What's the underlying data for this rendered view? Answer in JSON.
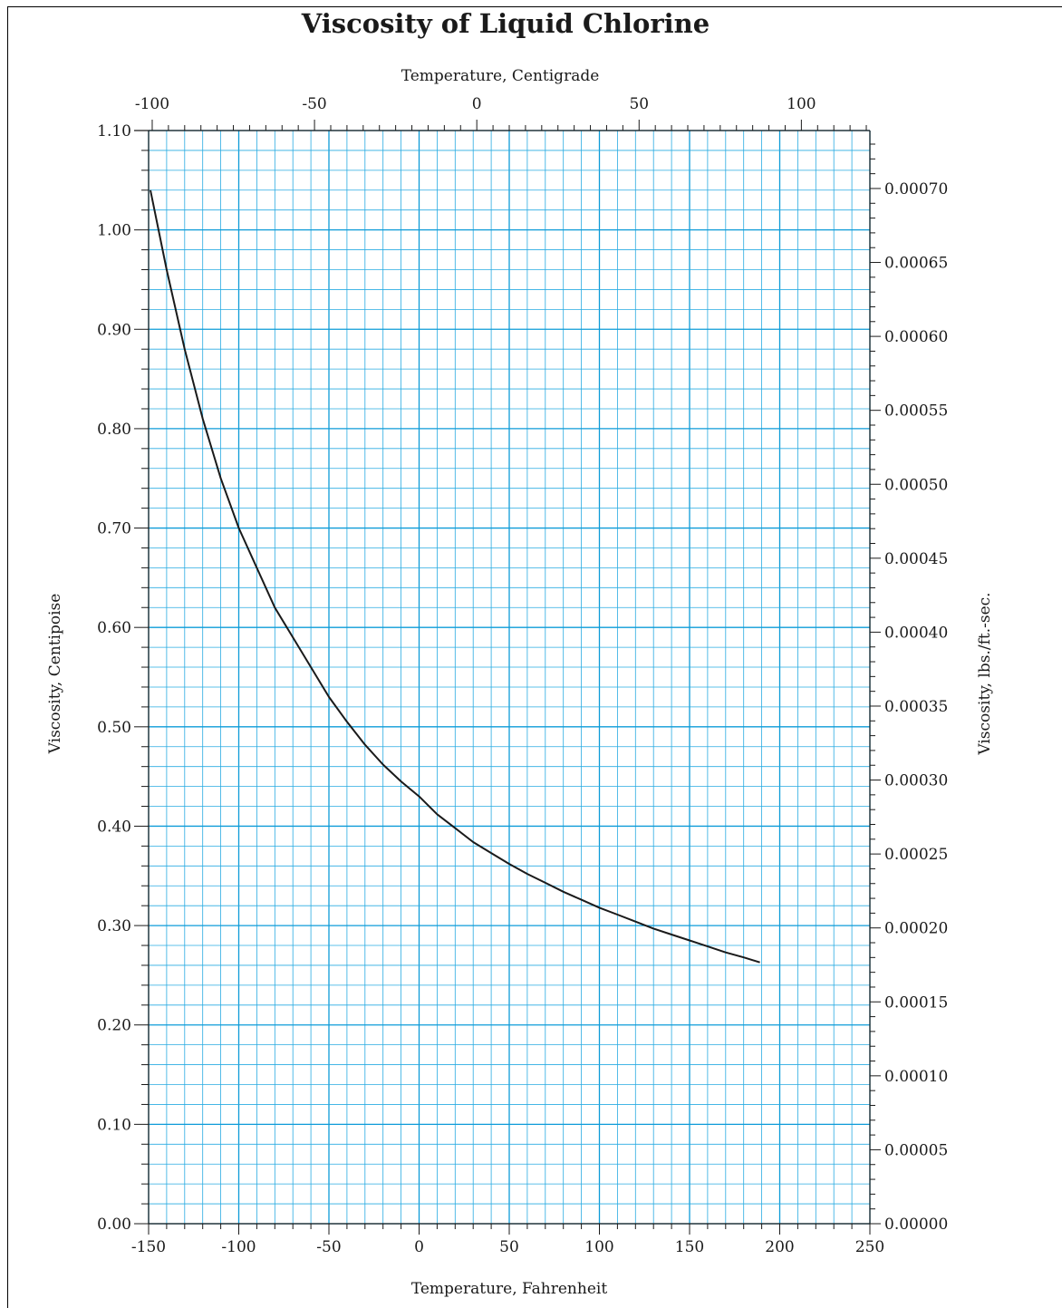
{
  "chart_data": {
    "type": "line",
    "title": "Viscosity of Liquid Chlorine",
    "x_bottom": {
      "label": "Temperature, Fahrenheit",
      "range": [
        -150,
        250
      ],
      "ticks": [
        "-150",
        "-100",
        "-50",
        "0",
        "50",
        "100",
        "150",
        "200",
        "250"
      ]
    },
    "x_top": {
      "label": "Temperature, Centigrade",
      "ticks": [
        "-100",
        "-50",
        "0",
        "50",
        "100"
      ],
      "tick_values": [
        -100,
        -50,
        0,
        50,
        100
      ]
    },
    "y_left": {
      "label": "Viscosity, Centipoise",
      "range": [
        0,
        1.1
      ],
      "ticks": [
        "0.00",
        "0.10",
        "0.20",
        "0.30",
        "0.40",
        "0.50",
        "0.60",
        "0.70",
        "0.80",
        "0.90",
        "1.00",
        "1.10"
      ]
    },
    "y_right": {
      "label": "Viscosity, lbs./ft.-sec.",
      "ticks": [
        "0.00000",
        "0.00005",
        "0.00010",
        "0.00015",
        "0.00020",
        "0.00025",
        "0.00030",
        "0.00035",
        "0.00040",
        "0.00045",
        "0.00050",
        "0.00055",
        "0.00060",
        "0.00065",
        "0.00070"
      ],
      "tick_values": [
        0,
        5e-05,
        0.0001,
        0.00015,
        0.0002,
        0.00025,
        0.0003,
        0.00035,
        0.0004,
        0.00045,
        0.0005,
        0.00055,
        0.0006,
        0.00065,
        0.0007
      ]
    },
    "grid": true,
    "series": [
      {
        "x": [
          -149,
          -140,
          -130,
          -120,
          -110,
          -100,
          -90,
          -80,
          -70,
          -60,
          -50,
          -40,
          -30,
          -20,
          -10,
          0,
          10,
          20,
          30,
          40,
          50,
          60,
          70,
          80,
          90,
          100,
          110,
          120,
          130,
          140,
          150,
          160,
          170,
          180,
          189
        ],
        "y": [
          1.04,
          0.96,
          0.88,
          0.81,
          0.75,
          0.7,
          0.66,
          0.62,
          0.59,
          0.56,
          0.53,
          0.505,
          0.482,
          0.462,
          0.445,
          0.43,
          0.412,
          0.398,
          0.384,
          0.373,
          0.362,
          0.352,
          0.343,
          0.334,
          0.326,
          0.318,
          0.311,
          0.304,
          0.297,
          0.291,
          0.285,
          0.279,
          0.273,
          0.268,
          0.263
        ]
      }
    ],
    "colors": {
      "grid": "#29abe2",
      "grid_major": "#0d9bd8",
      "curve": "#1a1a1a",
      "axis": "#1a1a1a"
    }
  }
}
